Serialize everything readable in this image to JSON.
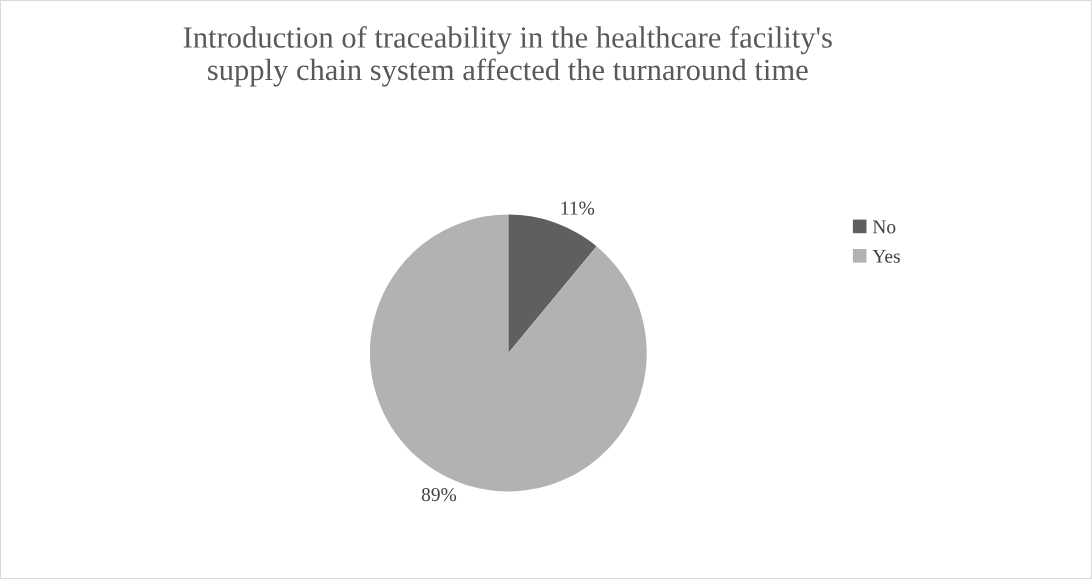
{
  "chart_data": {
    "type": "pie",
    "title": "Introduction of traceability in the healthcare facility's\nsupply chain system affected the turnaround time",
    "categories": [
      "No",
      "Yes"
    ],
    "values": [
      11,
      89
    ],
    "colors": [
      "#5f5f5f",
      "#b2b2b2"
    ],
    "value_labels": [
      "11%",
      "89%"
    ],
    "legend": "right"
  }
}
